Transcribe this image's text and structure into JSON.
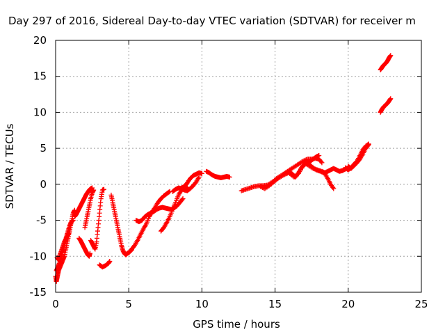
{
  "chart_data": {
    "type": "scatter",
    "title": "Day 297 of 2016, Sidereal Day-to-day VTEC variation (SDTVAR) for receiver m",
    "xlabel": "GPS time / hours",
    "ylabel": "SDTVAR / TECUs",
    "xlim": [
      0,
      25
    ],
    "ylim": [
      -15,
      20
    ],
    "xticks": [
      0,
      5,
      10,
      15,
      20,
      25
    ],
    "yticks": [
      -15,
      -10,
      -5,
      0,
      5,
      10,
      15,
      20
    ],
    "grid": true,
    "marker": "plus",
    "color": "#ff0000",
    "series": [
      {
        "values": [
          [
            0.0,
            -12.8
          ],
          [
            0.05,
            -13.5
          ],
          [
            0.1,
            -13.0
          ],
          [
            0.15,
            -12.5
          ],
          [
            0.2,
            -12.0
          ],
          [
            0.3,
            -11.5
          ],
          [
            0.4,
            -11.0
          ],
          [
            0.5,
            -10.5
          ],
          [
            0.6,
            -10.0
          ],
          [
            0.7,
            -9.0
          ],
          [
            0.8,
            -8.0
          ],
          [
            0.9,
            -7.0
          ],
          [
            1.0,
            -6.0
          ],
          [
            1.1,
            -5.0
          ],
          [
            1.2,
            -4.0
          ],
          [
            1.3,
            -3.6
          ]
        ]
      },
      {
        "values": [
          [
            0.05,
            -12.0
          ],
          [
            0.15,
            -11.5
          ],
          [
            0.25,
            -11.0
          ],
          [
            0.35,
            -10.3
          ],
          [
            0.45,
            -9.5
          ],
          [
            0.55,
            -9.0
          ],
          [
            0.65,
            -8.0
          ],
          [
            0.75,
            -7.2
          ],
          [
            0.85,
            -6.5
          ],
          [
            0.95,
            -5.8
          ],
          [
            1.05,
            -5.3
          ],
          [
            1.2,
            -5.0
          ]
        ]
      },
      {
        "values": [
          [
            0.1,
            -10.2
          ],
          [
            0.2,
            -10.5
          ],
          [
            0.3,
            -9.8
          ],
          [
            0.4,
            -9.2
          ],
          [
            0.5,
            -8.6
          ],
          [
            0.6,
            -8.0
          ],
          [
            0.7,
            -7.6
          ],
          [
            0.8,
            -7.2
          ],
          [
            0.9,
            -6.8
          ]
        ]
      },
      {
        "values": [
          [
            1.3,
            -4.5
          ],
          [
            1.4,
            -4.2
          ],
          [
            1.5,
            -3.8
          ],
          [
            1.6,
            -3.4
          ],
          [
            1.7,
            -3.0
          ],
          [
            1.8,
            -2.6
          ],
          [
            1.9,
            -2.2
          ],
          [
            2.0,
            -1.8
          ],
          [
            2.1,
            -1.4
          ],
          [
            2.2,
            -1.1
          ],
          [
            2.3,
            -0.8
          ],
          [
            2.4,
            -0.6
          ],
          [
            2.5,
            -0.5
          ]
        ]
      },
      {
        "values": [
          [
            1.6,
            -7.5
          ],
          [
            1.7,
            -7.8
          ],
          [
            1.8,
            -8.2
          ],
          [
            1.9,
            -8.6
          ],
          [
            2.0,
            -9.0
          ],
          [
            2.1,
            -9.4
          ],
          [
            2.2,
            -9.8
          ],
          [
            2.3,
            -10.0
          ],
          [
            2.35,
            -9.6
          ]
        ]
      },
      {
        "values": [
          [
            2.0,
            -6.0
          ],
          [
            2.1,
            -5.0
          ],
          [
            2.2,
            -4.0
          ],
          [
            2.3,
            -3.0
          ],
          [
            2.4,
            -2.0
          ],
          [
            2.5,
            -1.2
          ],
          [
            2.6,
            -0.8
          ]
        ]
      },
      {
        "values": [
          [
            2.4,
            -7.8
          ],
          [
            2.5,
            -8.2
          ],
          [
            2.6,
            -8.6
          ],
          [
            2.7,
            -9.0
          ],
          [
            2.8,
            -8.0
          ],
          [
            2.9,
            -6.0
          ],
          [
            3.0,
            -4.0
          ],
          [
            3.1,
            -2.0
          ],
          [
            3.2,
            -0.8
          ],
          [
            3.3,
            -0.7
          ]
        ]
      },
      {
        "values": [
          [
            3.0,
            -11.2
          ],
          [
            3.2,
            -11.5
          ],
          [
            3.4,
            -11.3
          ],
          [
            3.6,
            -11.0
          ],
          [
            3.7,
            -10.7
          ]
        ]
      },
      {
        "values": [
          [
            3.8,
            -1.5
          ],
          [
            3.9,
            -2.5
          ],
          [
            4.0,
            -3.5
          ],
          [
            4.1,
            -4.5
          ],
          [
            4.2,
            -5.5
          ],
          [
            4.3,
            -6.5
          ],
          [
            4.4,
            -7.5
          ],
          [
            4.5,
            -8.5
          ],
          [
            4.6,
            -9.2
          ],
          [
            4.7,
            -9.6
          ],
          [
            4.8,
            -9.8
          ],
          [
            4.9,
            -9.6
          ],
          [
            5.0,
            -9.5
          ],
          [
            5.1,
            -9.3
          ],
          [
            5.2,
            -9.1
          ]
        ]
      },
      {
        "values": [
          [
            5.2,
            -9.0
          ],
          [
            5.4,
            -8.5
          ],
          [
            5.6,
            -7.8
          ],
          [
            5.8,
            -7.0
          ],
          [
            6.0,
            -6.2
          ],
          [
            6.2,
            -5.5
          ],
          [
            6.4,
            -4.5
          ],
          [
            6.6,
            -3.8
          ],
          [
            6.8,
            -3.2
          ],
          [
            7.0,
            -2.5
          ],
          [
            7.2,
            -2.0
          ],
          [
            7.4,
            -1.6
          ],
          [
            7.6,
            -1.3
          ],
          [
            7.8,
            -1.0
          ]
        ]
      },
      {
        "values": [
          [
            5.5,
            -5.0
          ],
          [
            5.7,
            -5.2
          ],
          [
            5.9,
            -5.0
          ],
          [
            6.1,
            -4.5
          ],
          [
            6.3,
            -4.2
          ],
          [
            6.5,
            -4.0
          ],
          [
            6.7,
            -3.8
          ],
          [
            6.9,
            -3.5
          ],
          [
            7.1,
            -3.3
          ],
          [
            7.3,
            -3.2
          ],
          [
            7.5,
            -3.3
          ],
          [
            7.7,
            -3.4
          ],
          [
            7.9,
            -3.5
          ],
          [
            8.1,
            -3.3
          ],
          [
            8.3,
            -3.0
          ],
          [
            8.5,
            -2.5
          ],
          [
            8.7,
            -2.0
          ]
        ]
      },
      {
        "values": [
          [
            7.2,
            -6.5
          ],
          [
            7.4,
            -6.0
          ],
          [
            7.6,
            -5.3
          ],
          [
            7.8,
            -4.5
          ],
          [
            8.0,
            -3.5
          ],
          [
            8.2,
            -2.5
          ],
          [
            8.4,
            -1.5
          ],
          [
            8.6,
            -0.8
          ],
          [
            8.8,
            -0.5
          ],
          [
            9.0,
            -0.4
          ]
        ]
      },
      {
        "values": [
          [
            8.0,
            -1.0
          ],
          [
            8.2,
            -0.7
          ],
          [
            8.4,
            -0.5
          ],
          [
            8.6,
            -0.6
          ],
          [
            8.8,
            -0.8
          ],
          [
            9.0,
            -0.9
          ],
          [
            9.2,
            -0.6
          ],
          [
            9.4,
            -0.2
          ],
          [
            9.6,
            0.3
          ],
          [
            9.8,
            1.0
          ]
        ]
      },
      {
        "values": [
          [
            8.6,
            -0.5
          ],
          [
            8.8,
            -0.3
          ],
          [
            9.0,
            0.2
          ],
          [
            9.2,
            0.8
          ],
          [
            9.4,
            1.2
          ],
          [
            9.6,
            1.4
          ],
          [
            9.8,
            1.6
          ],
          [
            10.0,
            1.5
          ]
        ]
      },
      {
        "values": [
          [
            10.3,
            1.8
          ],
          [
            10.5,
            1.6
          ],
          [
            10.7,
            1.3
          ],
          [
            10.9,
            1.1
          ],
          [
            11.1,
            1.0
          ],
          [
            11.3,
            0.9
          ],
          [
            11.5,
            1.0
          ],
          [
            11.7,
            1.1
          ],
          [
            11.9,
            1.0
          ]
        ]
      },
      {
        "values": [
          [
            12.7,
            -0.9
          ],
          [
            13.0,
            -0.7
          ],
          [
            13.3,
            -0.5
          ],
          [
            13.6,
            -0.3
          ],
          [
            13.9,
            -0.2
          ],
          [
            14.2,
            -0.2
          ],
          [
            14.5,
            -0.1
          ],
          [
            14.8,
            0.3
          ],
          [
            15.1,
            0.8
          ],
          [
            15.4,
            1.2
          ],
          [
            15.7,
            1.6
          ],
          [
            16.0,
            2.0
          ],
          [
            16.3,
            2.4
          ],
          [
            16.6,
            2.8
          ],
          [
            16.9,
            3.2
          ],
          [
            17.2,
            3.5
          ],
          [
            17.5,
            3.5
          ],
          [
            17.8,
            3.6
          ],
          [
            18.0,
            3.5
          ],
          [
            18.2,
            3.0
          ]
        ]
      },
      {
        "values": [
          [
            14.0,
            -0.3
          ],
          [
            14.3,
            -0.6
          ],
          [
            14.6,
            -0.2
          ],
          [
            14.9,
            0.3
          ],
          [
            15.2,
            0.8
          ],
          [
            15.5,
            1.2
          ],
          [
            15.8,
            1.5
          ],
          [
            16.0,
            1.7
          ],
          [
            16.2,
            1.4
          ],
          [
            16.4,
            1.0
          ],
          [
            16.6,
            1.6
          ],
          [
            16.8,
            2.3
          ],
          [
            17.0,
            2.8
          ],
          [
            17.2,
            3.0
          ],
          [
            17.4,
            3.2
          ],
          [
            17.6,
            3.5
          ],
          [
            17.8,
            3.8
          ],
          [
            18.0,
            4.0
          ]
        ]
      },
      {
        "values": [
          [
            16.0,
            1.5
          ],
          [
            16.3,
            1.0
          ],
          [
            16.6,
            1.5
          ],
          [
            16.9,
            2.5
          ],
          [
            17.2,
            3.0
          ],
          [
            17.5,
            2.5
          ],
          [
            17.8,
            2.0
          ],
          [
            18.1,
            1.8
          ],
          [
            18.4,
            1.5
          ],
          [
            18.6,
            0.8
          ],
          [
            18.8,
            0.0
          ],
          [
            19.0,
            -0.6
          ]
        ]
      },
      {
        "values": [
          [
            17.0,
            3.0
          ],
          [
            17.3,
            2.6
          ],
          [
            17.6,
            2.2
          ],
          [
            17.9,
            2.0
          ],
          [
            18.2,
            1.8
          ],
          [
            18.4,
            1.6
          ],
          [
            18.6,
            1.8
          ],
          [
            18.8,
            2.0
          ],
          [
            19.0,
            2.2
          ],
          [
            19.2,
            2.0
          ],
          [
            19.4,
            1.8
          ],
          [
            19.6,
            1.9
          ],
          [
            19.8,
            2.1
          ],
          [
            20.0,
            2.3
          ]
        ]
      },
      {
        "values": [
          [
            19.8,
            2.3
          ],
          [
            20.0,
            2.0
          ],
          [
            20.2,
            2.3
          ],
          [
            20.4,
            2.8
          ],
          [
            20.6,
            3.2
          ],
          [
            20.8,
            4.0
          ],
          [
            21.0,
            4.8
          ],
          [
            21.2,
            5.3
          ],
          [
            21.4,
            5.6
          ]
        ]
      },
      {
        "values": [
          [
            20.0,
            2.5
          ],
          [
            20.2,
            2.2
          ],
          [
            20.4,
            2.6
          ],
          [
            20.6,
            3.0
          ],
          [
            20.8,
            3.5
          ],
          [
            21.0,
            4.2
          ],
          [
            21.2,
            5.0
          ],
          [
            21.4,
            5.5
          ]
        ]
      },
      {
        "values": [
          [
            22.2,
            10.0
          ],
          [
            22.3,
            10.4
          ],
          [
            22.4,
            10.7
          ],
          [
            22.5,
            10.9
          ],
          [
            22.6,
            11.1
          ],
          [
            22.7,
            11.3
          ],
          [
            22.8,
            11.6
          ],
          [
            22.9,
            11.9
          ]
        ]
      },
      {
        "values": [
          [
            22.2,
            15.9
          ],
          [
            22.3,
            16.2
          ],
          [
            22.4,
            16.5
          ],
          [
            22.5,
            16.7
          ],
          [
            22.6,
            16.9
          ],
          [
            22.7,
            17.2
          ],
          [
            22.8,
            17.6
          ],
          [
            22.9,
            17.9
          ]
        ]
      }
    ]
  }
}
